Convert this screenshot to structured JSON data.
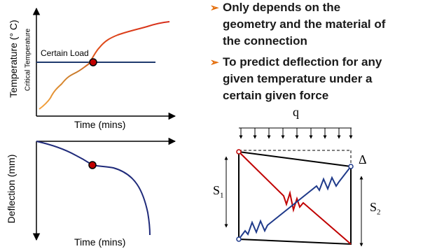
{
  "top_chart": {
    "ylabel": "Temperature (° C)",
    "ylabel_sub": "Critical Temperature",
    "xlabel": "Time (mins)",
    "annotation": "Certain Load"
  },
  "bottom_chart": {
    "ylabel": "Deflection (mm)",
    "xlabel": "Time (mins)"
  },
  "bullets": [
    {
      "lines": [
        "Only depends on the",
        "geometry and the material of",
        "the connection"
      ]
    },
    {
      "lines": [
        "To predict deflection for any",
        "given temperature under a",
        "certain given force"
      ]
    }
  ],
  "diagram": {
    "load_label": "q",
    "delta_label": "Δ",
    "s1_label": "S",
    "s1_sub": "1",
    "s2_label": "S",
    "s2_sub": "2"
  },
  "colors": {
    "bullet_arrow": "#e36c09",
    "curve_hot": "#d62c1a",
    "curve_warm": "#f7a23a",
    "curve_deflection": "#1f2a7a",
    "critical_line": "#1f3a6e",
    "spring_red": "#c00000",
    "spring_blue": "#1f3a8a",
    "marker": "#c00000"
  }
}
